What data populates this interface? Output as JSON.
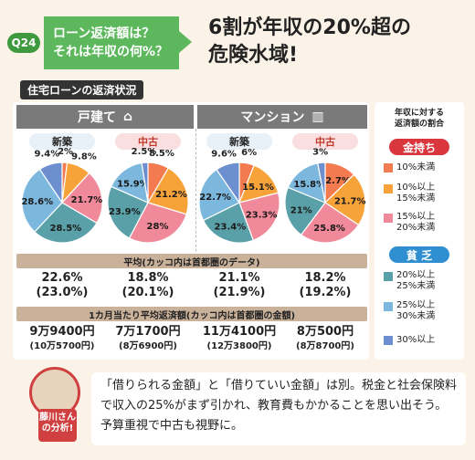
{
  "question": {
    "badge": "Q24",
    "line1": "ローン返済額は？",
    "line2": "それは年収の何%？"
  },
  "headline": {
    "line1": "6割が年収の20%超の",
    "line2": "危険水域!"
  },
  "section_label": "住宅ローンの返済状況",
  "colors": {
    "c10": "#f47b4f",
    "c15": "#f8a33a",
    "c20": "#f08a9a",
    "c25": "#5aa0a8",
    "c30": "#7cb8de",
    "c30p": "#6d8fd0"
  },
  "chart_data": [
    {
      "type": "pie",
      "group": "戸建て",
      "label": "新築",
      "slices": [
        {
          "category": "10%未満",
          "value": 2.0
        },
        {
          "category": "10%以上15%未満",
          "value": 9.8
        },
        {
          "category": "15%以上20%未満",
          "value": 21.7
        },
        {
          "category": "20%以上25%未満",
          "value": 28.5
        },
        {
          "category": "25%以上30%未満",
          "value": 28.6
        },
        {
          "category": "30%以上",
          "value": 9.4
        }
      ],
      "avg": "22.6%",
      "avg_tokyo": "(23.0%)",
      "monthly": "9万9400円",
      "monthly_tokyo": "(10万5700円)"
    },
    {
      "type": "pie",
      "group": "戸建て",
      "label": "中古",
      "slices": [
        {
          "category": "10%未満",
          "value": 8.5
        },
        {
          "category": "10%以上15%未満",
          "value": 21.2
        },
        {
          "category": "15%以上20%未満",
          "value": 28
        },
        {
          "category": "20%以上25%未満",
          "value": 23.9
        },
        {
          "category": "25%以上30%未満",
          "value": 15.9
        },
        {
          "category": "30%以上",
          "value": 2.5
        }
      ],
      "avg": "18.8%",
      "avg_tokyo": "(20.1%)",
      "monthly": "7万1700円",
      "monthly_tokyo": "(8万6900円)"
    },
    {
      "type": "pie",
      "group": "マンション",
      "label": "新築",
      "slices": [
        {
          "category": "10%未満",
          "value": 6
        },
        {
          "category": "10%以上15%未満",
          "value": 15.1
        },
        {
          "category": "15%以上20%未満",
          "value": 23.3
        },
        {
          "category": "20%以上25%未満",
          "value": 23.4
        },
        {
          "category": "25%以上30%未満",
          "value": 22.7
        },
        {
          "category": "30%以上",
          "value": 9.6
        }
      ],
      "avg": "21.1%",
      "avg_tokyo": "(21.9%)",
      "monthly": "11万4100円",
      "monthly_tokyo": "(12万3800円)"
    },
    {
      "type": "pie",
      "group": "マンション",
      "label": "中古",
      "slices": [
        {
          "category": "10%未満",
          "value": 12.7
        },
        {
          "category": "10%以上15%未満",
          "value": 21.7
        },
        {
          "category": "15%以上20%未満",
          "value": 25.8
        },
        {
          "category": "20%以上25%未満",
          "value": 21
        },
        {
          "category": "25%以上30%未満",
          "value": 15.8
        },
        {
          "category": "30%以上",
          "value": 3
        }
      ],
      "avg": "18.2%",
      "avg_tokyo": "(19.2%)",
      "monthly": "8万500円",
      "monthly_tokyo": "(8万8700円)"
    }
  ],
  "groups": {
    "house": "戸建て",
    "mansion": "マンション"
  },
  "sub": {
    "new": "新築",
    "used": "中古"
  },
  "bands": {
    "avg": "平均(カッコ内は首都圏のデータ)",
    "monthly": "1カ月当たり平均返済額(カッコ内は首都圏の金額)"
  },
  "legend": {
    "title1": "年収に対する",
    "title2": "返済額の割合",
    "rich": "金持ち",
    "poor": "貧 乏",
    "items": [
      {
        "line1": "10%未満",
        "line2": ""
      },
      {
        "line1": "10%以上",
        "line2": "15%未満"
      },
      {
        "line1": "15%以上",
        "line2": "20%未満"
      },
      {
        "line1": "20%以上",
        "line2": "25%未満"
      },
      {
        "line1": "25%以上",
        "line2": "30%未満"
      },
      {
        "line1": "30%以上",
        "line2": ""
      }
    ]
  },
  "analysis": {
    "name1": "藤川さん",
    "name2": "の分析!",
    "text": "「借りられる金額」と「借りていい金額」は別。税金と社会保険料で収入の25%がまず引かれ、教育費もかかることを思い出そう。予算重視で中古も視野に。"
  }
}
